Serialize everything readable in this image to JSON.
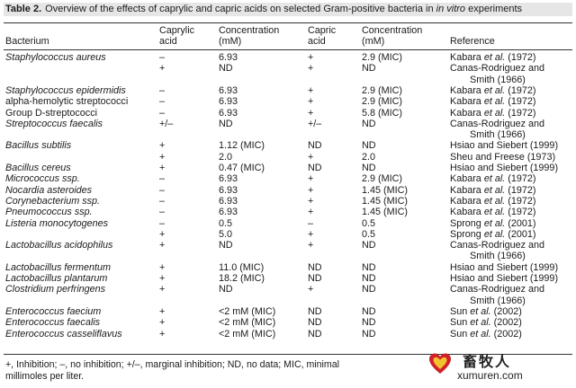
{
  "caption": {
    "label": "Table 2.",
    "text_a": "Overview of the effects of caprylic and capric acids on selected Gram-positive bacteria in ",
    "text_b": "in vitro",
    "text_c": " experiments"
  },
  "header": {
    "bacterium": "Bacterium",
    "caprylic_1": "Caprylic",
    "caprylic_2": "acid",
    "conc1_1": "Concentration",
    "conc1_2": "(mM)",
    "capric_1": "Capric",
    "capric_2": "acid",
    "conc2_1": "Concentration",
    "conc2_2": "(mM)",
    "reference": "Reference"
  },
  "rows": [
    {
      "bac": "Staphylococcus aureus",
      "ca": "–",
      "c1": "6.93",
      "cp": "+",
      "c2": "2.9 (MIC)",
      "ref": [
        "Kabara ",
        "et al.",
        " (1972)"
      ]
    },
    {
      "bac": "",
      "ca": "+",
      "c1": "ND",
      "cp": "+",
      "c2": "ND",
      "ref": [
        "Canas-Rodriguez and",
        "",
        ""
      ]
    },
    {
      "bac": "",
      "ca": "",
      "c1": "",
      "cp": "",
      "c2": "",
      "ref": [
        "Smith (1966)",
        "",
        ""
      ],
      "ref_indent": true
    },
    {
      "bac": "Staphylococcus epidermidis",
      "ca": "–",
      "c1": "6.93",
      "cp": "+",
      "c2": "2.9 (MIC)",
      "ref": [
        "Kabara ",
        "et al.",
        " (1972)"
      ]
    },
    {
      "bac": "alpha-hemolytic streptococci",
      "plain": true,
      "ca": "–",
      "c1": "6.93",
      "cp": "+",
      "c2": "2.9 (MIC)",
      "ref": [
        "Kabara ",
        "et al.",
        " (1972)"
      ]
    },
    {
      "bac": "Group D-streptococci",
      "plain": true,
      "ca": "–",
      "c1": "6.93",
      "cp": "+",
      "c2": "5.8 (MIC)",
      "ref": [
        "Kabara ",
        "et al.",
        " (1972)"
      ]
    },
    {
      "bac": "Streptococcus faecalis",
      "ca": "+/–",
      "c1": "ND",
      "cp": "+/–",
      "c2": "ND",
      "ref": [
        "Canas-Rodriguez and",
        "",
        ""
      ]
    },
    {
      "bac": "",
      "ca": "",
      "c1": "",
      "cp": "",
      "c2": "",
      "ref": [
        "Smith (1966)",
        "",
        ""
      ],
      "ref_indent": true
    },
    {
      "bac": "Bacillus subtilis",
      "ca": "+",
      "c1": "1.12 (MIC)",
      "cp": "ND",
      "c2": "ND",
      "ref": [
        "Hsiao and Siebert (1999)",
        "",
        ""
      ]
    },
    {
      "bac": "",
      "ca": "+",
      "c1": "2.0",
      "cp": "+",
      "c2": "2.0",
      "ref": [
        "Sheu and Freese (1973)",
        "",
        ""
      ]
    },
    {
      "bac": "Bacillus cereus",
      "ca": "+",
      "c1": "0.47 (MIC)",
      "cp": "ND",
      "c2": "ND",
      "ref": [
        "Hsiao and Siebert (1999)",
        "",
        ""
      ]
    },
    {
      "bac": "Micrococcus ssp.",
      "ca": "–",
      "c1": "6.93",
      "cp": "+",
      "c2": "2.9 (MIC)",
      "ref": [
        "Kabara ",
        "et al.",
        " (1972)"
      ]
    },
    {
      "bac": "Nocardia asteroides",
      "ca": "–",
      "c1": "6.93",
      "cp": "+",
      "c2": "1.45 (MIC)",
      "ref": [
        "Kabara ",
        "et al.",
        " (1972)"
      ]
    },
    {
      "bac": "Corynebacterium ssp.",
      "ca": "–",
      "c1": "6.93",
      "cp": "+",
      "c2": "1.45 (MIC)",
      "ref": [
        "Kabara ",
        "et al.",
        " (1972)"
      ]
    },
    {
      "bac": "Pneumococcus ssp.",
      "ca": "–",
      "c1": "6.93",
      "cp": "+",
      "c2": "1.45 (MIC)",
      "ref": [
        "Kabara ",
        "et al.",
        " (1972)"
      ]
    },
    {
      "bac": "Listeria monocytogenes",
      "ca": "–",
      "c1": "0.5",
      "cp": "–",
      "c2": "0.5",
      "ref": [
        "Sprong ",
        "et al.",
        " (2001)"
      ]
    },
    {
      "bac": "",
      "ca": "+",
      "c1": "5.0",
      "cp": "+",
      "c2": "0.5",
      "ref": [
        "Sprong ",
        "et al.",
        " (2001)"
      ]
    },
    {
      "bac": "Lactobacillus acidophilus",
      "ca": "+",
      "c1": "ND",
      "cp": "+",
      "c2": "ND",
      "ref": [
        "Canas-Rodriguez and",
        "",
        ""
      ]
    },
    {
      "bac": "",
      "ca": "",
      "c1": "",
      "cp": "",
      "c2": "",
      "ref": [
        "Smith (1966)",
        "",
        ""
      ],
      "ref_indent": true
    },
    {
      "bac": "Lactobacillus fermentum",
      "ca": "+",
      "c1": "11.0 (MIC)",
      "cp": "ND",
      "c2": "ND",
      "ref": [
        "Hsiao and Siebert (1999)",
        "",
        ""
      ]
    },
    {
      "bac": "Lactobacillus plantarum",
      "ca": "+",
      "c1": "18.2 (MIC)",
      "cp": "ND",
      "c2": "ND",
      "ref": [
        "Hsiao and Siebert (1999)",
        "",
        ""
      ]
    },
    {
      "bac": "Clostridium perfringens",
      "ca": "+",
      "c1": "ND",
      "cp": "+",
      "c2": "ND",
      "ref": [
        "Canas-Rodriguez and",
        "",
        ""
      ]
    },
    {
      "bac": "",
      "ca": "",
      "c1": "",
      "cp": "",
      "c2": "",
      "ref": [
        "Smith (1966)",
        "",
        ""
      ],
      "ref_indent": true
    },
    {
      "bac": "Enterococcus faecium",
      "ca": "+",
      "c1": "<2 mM (MIC)",
      "cp": "ND",
      "c2": "ND",
      "ref": [
        "Sun ",
        "et al.",
        " (2002)"
      ]
    },
    {
      "bac": "Enterococcus faecalis",
      "ca": "+",
      "c1": "<2 mM (MIC)",
      "cp": "ND",
      "c2": "ND",
      "ref": [
        "Sun ",
        "et al.",
        " (2002)"
      ]
    },
    {
      "bac": "Enterococcus casseliflavus",
      "ca": "+",
      "c1": "<2 mM (MIC)",
      "cp": "ND",
      "c2": "ND",
      "ref": [
        "Sun ",
        "et al.",
        " (2002)"
      ]
    }
  ],
  "footnote": {
    "line1": "+, Inhibition; –, no inhibition; +/–, marginal inhibition; ND, no data; MIC, minimal",
    "line2": "millimoles per liter."
  },
  "watermark": {
    "brand": "畜牧人",
    "url": "xumuren.com",
    "logo_icon": "heart-logo-icon",
    "colors": {
      "red": "#d0202a",
      "yellow": "#f2c230"
    }
  }
}
